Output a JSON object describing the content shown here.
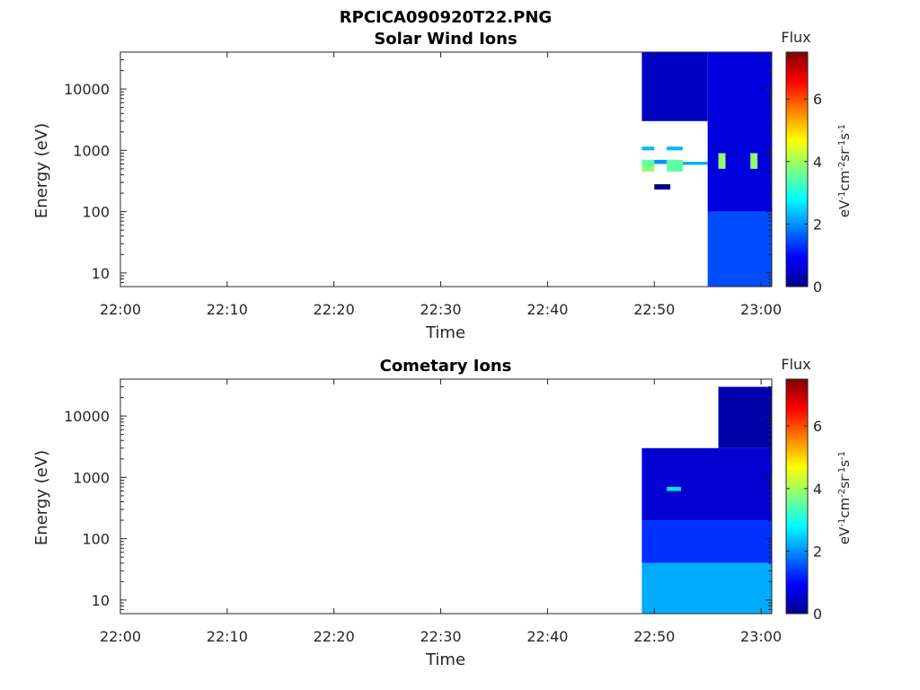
{
  "figure": {
    "title": "RPCICA090920T22.PNG"
  },
  "panels": [
    {
      "title": "Solar Wind Ions",
      "xlabel": "Time",
      "ylabel": "Energy (eV)",
      "colorbar_title": "Flux",
      "colorbar_unit": "eV-1cm-2sr-1s-1"
    },
    {
      "title": "Cometary Ions",
      "xlabel": "Time",
      "ylabel": "Energy (eV)",
      "colorbar_title": "Flux",
      "colorbar_unit": "eV-1cm-2sr-1s-1"
    }
  ],
  "chart_data": [
    {
      "type": "heatmap",
      "title": "Solar Wind Ions",
      "xlabel": "Time",
      "ylabel": "Energy (eV)",
      "x_ticks": [
        "22:00",
        "22:10",
        "22:20",
        "22:30",
        "22:40",
        "22:50",
        "23:00"
      ],
      "y_ticks": [
        "10",
        "100",
        "1000",
        "10000"
      ],
      "y_scale": "log",
      "ylim": [
        6,
        40000
      ],
      "xlim": [
        "22:00",
        "23:01"
      ],
      "colorbar": {
        "label": "Flux",
        "unit": "eV-1cm-2sr-1s-1",
        "ticks": [
          "0",
          "2",
          "4",
          "6"
        ],
        "range": [
          0,
          7.5
        ],
        "colormap": "jet"
      },
      "blocks": [
        {
          "t0": "22:48:50",
          "t1": "22:55:00",
          "e0": 3000,
          "e1": 40000,
          "flux": 0.5
        },
        {
          "t0": "22:48:50",
          "t1": "22:50:00",
          "e0": 1000,
          "e1": 1150,
          "flux": 2.3
        },
        {
          "t0": "22:51:10",
          "t1": "22:52:40",
          "e0": 1000,
          "e1": 1150,
          "flux": 2.3
        },
        {
          "t0": "22:48:50",
          "t1": "22:50:00",
          "e0": 550,
          "e1": 700,
          "flux": 3.5
        },
        {
          "t0": "22:48:50",
          "t1": "22:50:00",
          "e0": 450,
          "e1": 550,
          "flux": 3.9
        },
        {
          "t0": "22:50:00",
          "t1": "22:51:30",
          "e0": 600,
          "e1": 700,
          "flux": 2.0
        },
        {
          "t0": "22:51:10",
          "t1": "22:52:40",
          "e0": 450,
          "e1": 700,
          "flux": 3.5
        },
        {
          "t0": "22:52:40",
          "t1": "22:55:00",
          "e0": 580,
          "e1": 650,
          "flux": 2.2
        },
        {
          "t0": "22:50:00",
          "t1": "22:51:30",
          "e0": 230,
          "e1": 280,
          "flux": 0.1
        },
        {
          "t0": "22:55:00",
          "t1": "23:01:00",
          "e0": 100,
          "e1": 40000,
          "flux": 0.7
        },
        {
          "t0": "22:55:00",
          "t1": "23:01:00",
          "e0": 6,
          "e1": 100,
          "flux": 1.5
        },
        {
          "t0": "22:56:00",
          "t1": "22:56:40",
          "e0": 500,
          "e1": 900,
          "flux": 3.9
        },
        {
          "t0": "22:59:00",
          "t1": "22:59:40",
          "e0": 500,
          "e1": 900,
          "flux": 3.9
        }
      ],
      "grid": false
    },
    {
      "type": "heatmap",
      "title": "Cometary Ions",
      "xlabel": "Time",
      "ylabel": "Energy (eV)",
      "x_ticks": [
        "22:00",
        "22:10",
        "22:20",
        "22:30",
        "22:40",
        "22:50",
        "23:00"
      ],
      "y_ticks": [
        "10",
        "100",
        "1000",
        "10000"
      ],
      "y_scale": "log",
      "ylim": [
        6,
        40000
      ],
      "xlim": [
        "22:00",
        "23:01"
      ],
      "colorbar": {
        "label": "Flux",
        "unit": "eV-1cm-2sr-1s-1",
        "ticks": [
          "0",
          "2",
          "4",
          "6"
        ],
        "range": [
          0,
          7.5
        ],
        "colormap": "jet"
      },
      "blocks": [
        {
          "t0": "22:48:50",
          "t1": "23:01:00",
          "e0": 200,
          "e1": 3000,
          "flux": 0.6
        },
        {
          "t0": "22:48:50",
          "t1": "23:01:00",
          "e0": 40,
          "e1": 200,
          "flux": 1.3
        },
        {
          "t0": "22:48:50",
          "t1": "23:01:00",
          "e0": 6,
          "e1": 40,
          "flux": 2.2
        },
        {
          "t0": "22:56:00",
          "t1": "23:01:00",
          "e0": 3000,
          "e1": 30000,
          "flux": 0.3
        },
        {
          "t0": "22:51:10",
          "t1": "22:52:30",
          "e0": 600,
          "e1": 700,
          "flux": 2.6
        }
      ],
      "grid": false
    }
  ]
}
